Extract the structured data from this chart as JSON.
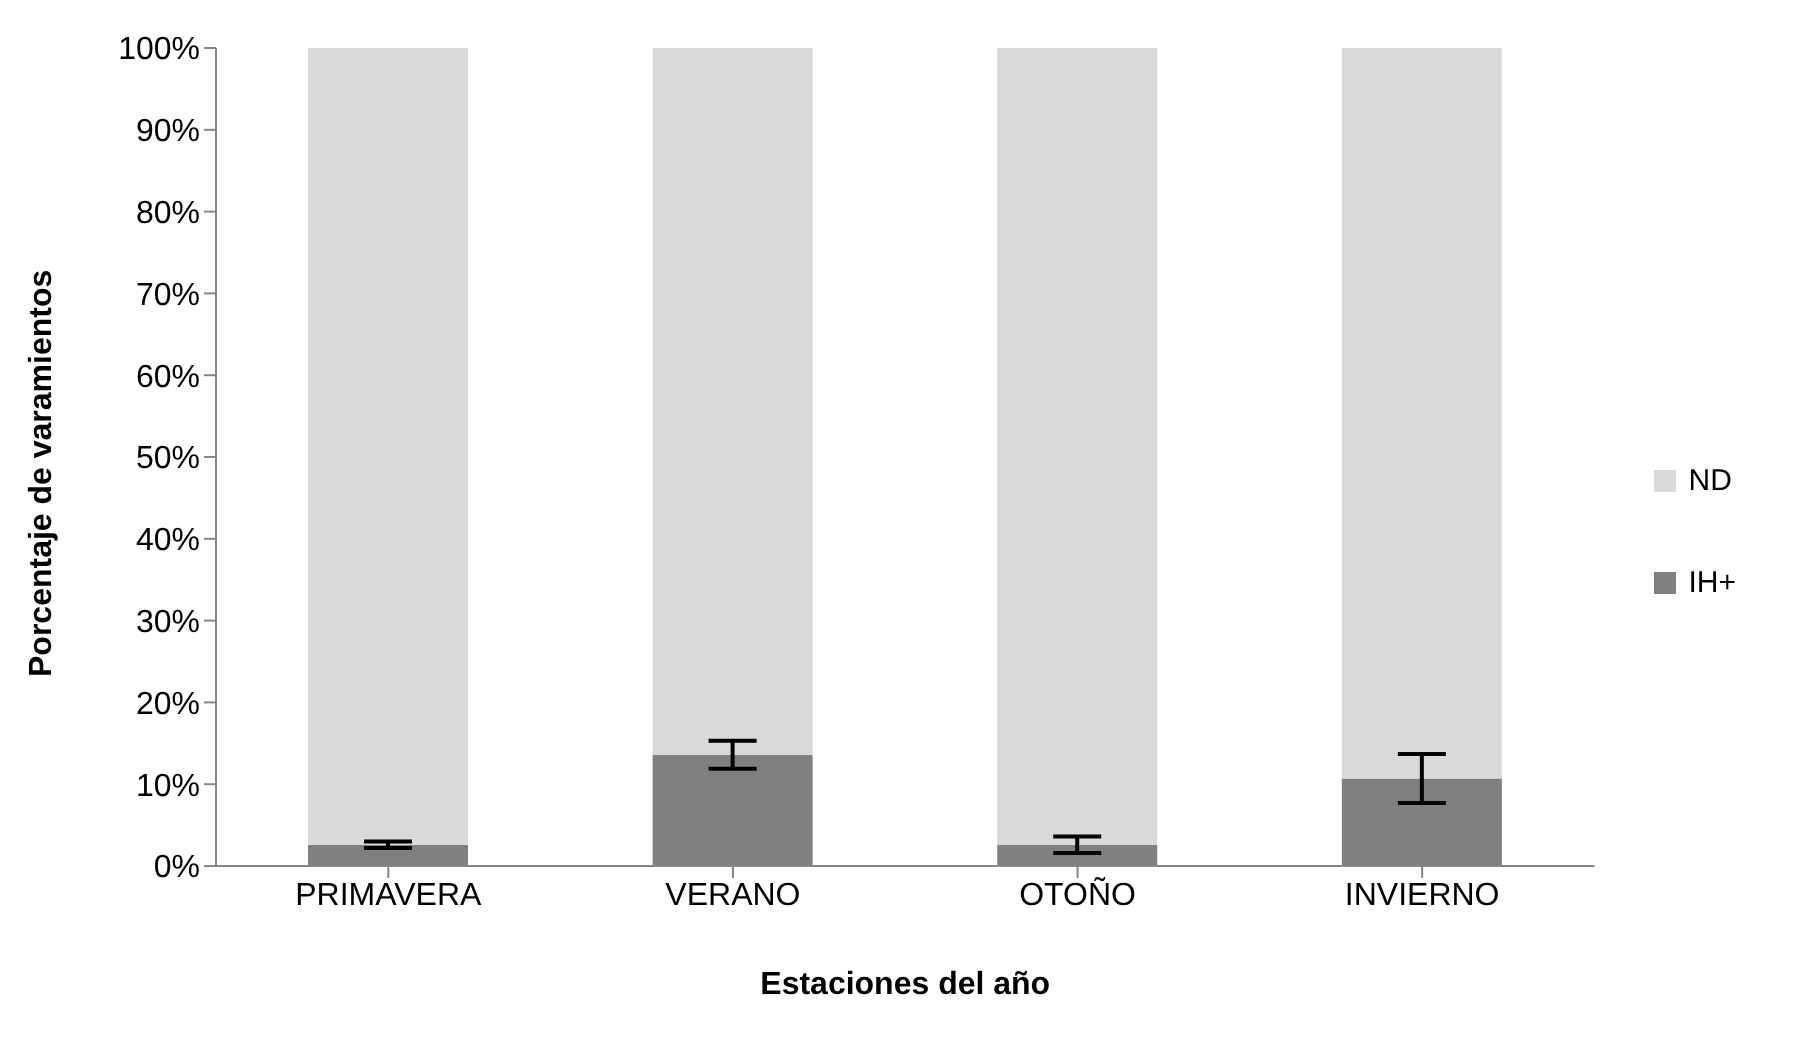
{
  "chart_data": {
    "type": "bar",
    "stacked": true,
    "xlabel": "Estaciones del año",
    "ylabel": "Porcentaje  de varamientos",
    "categories": [
      "PRIMAVERA",
      "VERANO",
      "OTOÑO",
      "INVIERNO"
    ],
    "series": [
      {
        "name": "IH+",
        "color": "#808080",
        "values": [
          2.6,
          13.6,
          2.6,
          10.7
        ],
        "errors": [
          0.4,
          1.7,
          1,
          3
        ]
      },
      {
        "name": "ND",
        "color": "#d9d9d9",
        "values": [
          97.4,
          86.4,
          97.4,
          89.3
        ]
      }
    ],
    "ylim": [
      0,
      100
    ],
    "yticks": [
      {
        "value": 0,
        "label": "0%"
      },
      {
        "value": 10,
        "label": "10%"
      },
      {
        "value": 20,
        "label": "20%"
      },
      {
        "value": 30,
        "label": "30%"
      },
      {
        "value": 40,
        "label": "40%"
      },
      {
        "value": 50,
        "label": "50%"
      },
      {
        "value": 60,
        "label": "60%"
      },
      {
        "value": 70,
        "label": "70%"
      },
      {
        "value": 80,
        "label": "80%"
      },
      {
        "value": 90,
        "label": "90%"
      },
      {
        "value": 100,
        "label": "100%"
      }
    ],
    "grid": false,
    "legend": "right"
  }
}
